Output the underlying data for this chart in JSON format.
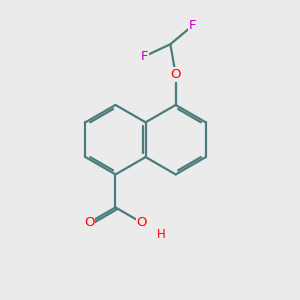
{
  "background_color": "#EBEBEB",
  "bond_color": "#4a7c7c",
  "atom_colors": {
    "O": "#FF0000",
    "F": "#CC00CC",
    "H": "#FF0000"
  },
  "bond_width": 1.6,
  "dbo": 0.08,
  "figsize": [
    3.0,
    3.0
  ],
  "dpi": 100,
  "xlim": [
    0,
    10
  ],
  "ylim": [
    0,
    10
  ]
}
